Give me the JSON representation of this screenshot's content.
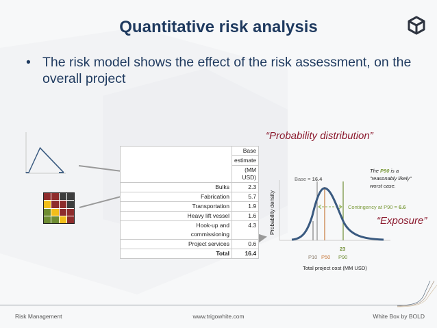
{
  "slide": {
    "title": "Quantitative risk analysis",
    "bullet_symbol": "•",
    "bullet_text": "The risk model shows the effect of the risk assessment, on the overall project",
    "logo_icon": "cube-icon"
  },
  "risk_matrix": {
    "cells": [
      "#8e2c2c",
      "#8e2c2c",
      "#3d3d3d",
      "#3d3d3d",
      "#f2be1a",
      "#8e2c2c",
      "#8e2c2c",
      "#3d3d3d",
      "#6e8c32",
      "#f2be1a",
      "#8e2c2c",
      "#8e2c2c",
      "#6e8c32",
      "#6e8c32",
      "#f2be1a",
      "#8e2c2c"
    ]
  },
  "estimate_table": {
    "header_line1": "Base",
    "header_line2": "estimate",
    "header_line3": "(MM USD)",
    "rows": [
      {
        "label": "Bulks",
        "value": "2.3"
      },
      {
        "label": "Fabrication",
        "value": "5.7"
      },
      {
        "label": "Transportation",
        "value": "1.9"
      },
      {
        "label": "Heavy lift vessel",
        "value": "1.6"
      },
      {
        "label": "Hook-up and",
        "label2": "commissioning",
        "value": "4.3"
      },
      {
        "label": "Project services",
        "value": "0.6"
      }
    ],
    "total_label": "Total",
    "total_value": "16.4"
  },
  "annotations": {
    "probability_distribution": "“Probability distribution”",
    "exposure": "“Exposure”",
    "p90_note_pre": "The ",
    "p90_note_p90": "P90",
    "p90_note_post": " is a \"reasonably likely\" worst case."
  },
  "chart_data": {
    "type": "line",
    "title": "",
    "xlabel": "Total project cost (MM USD)",
    "ylabel": "Probability density",
    "base_label": "Base = ",
    "base_value": "16.4",
    "contingency_label": "Contingency at P90 = ",
    "contingency_value": "6.6",
    "p90_value_label": "23",
    "markers": [
      {
        "name": "P10",
        "color": "#8a7a6a"
      },
      {
        "name": "P50",
        "color": "#c8783a"
      },
      {
        "name": "P90",
        "color": "#6e8c32"
      }
    ],
    "curve_color": "#3a5a80",
    "series": [
      {
        "name": "Probability density",
        "shape": "right-skewed bell curve"
      }
    ],
    "grid": false
  },
  "footer": {
    "left": "Risk Management",
    "center": "www.trigowhite.com",
    "right": "White Box by BOLD"
  }
}
